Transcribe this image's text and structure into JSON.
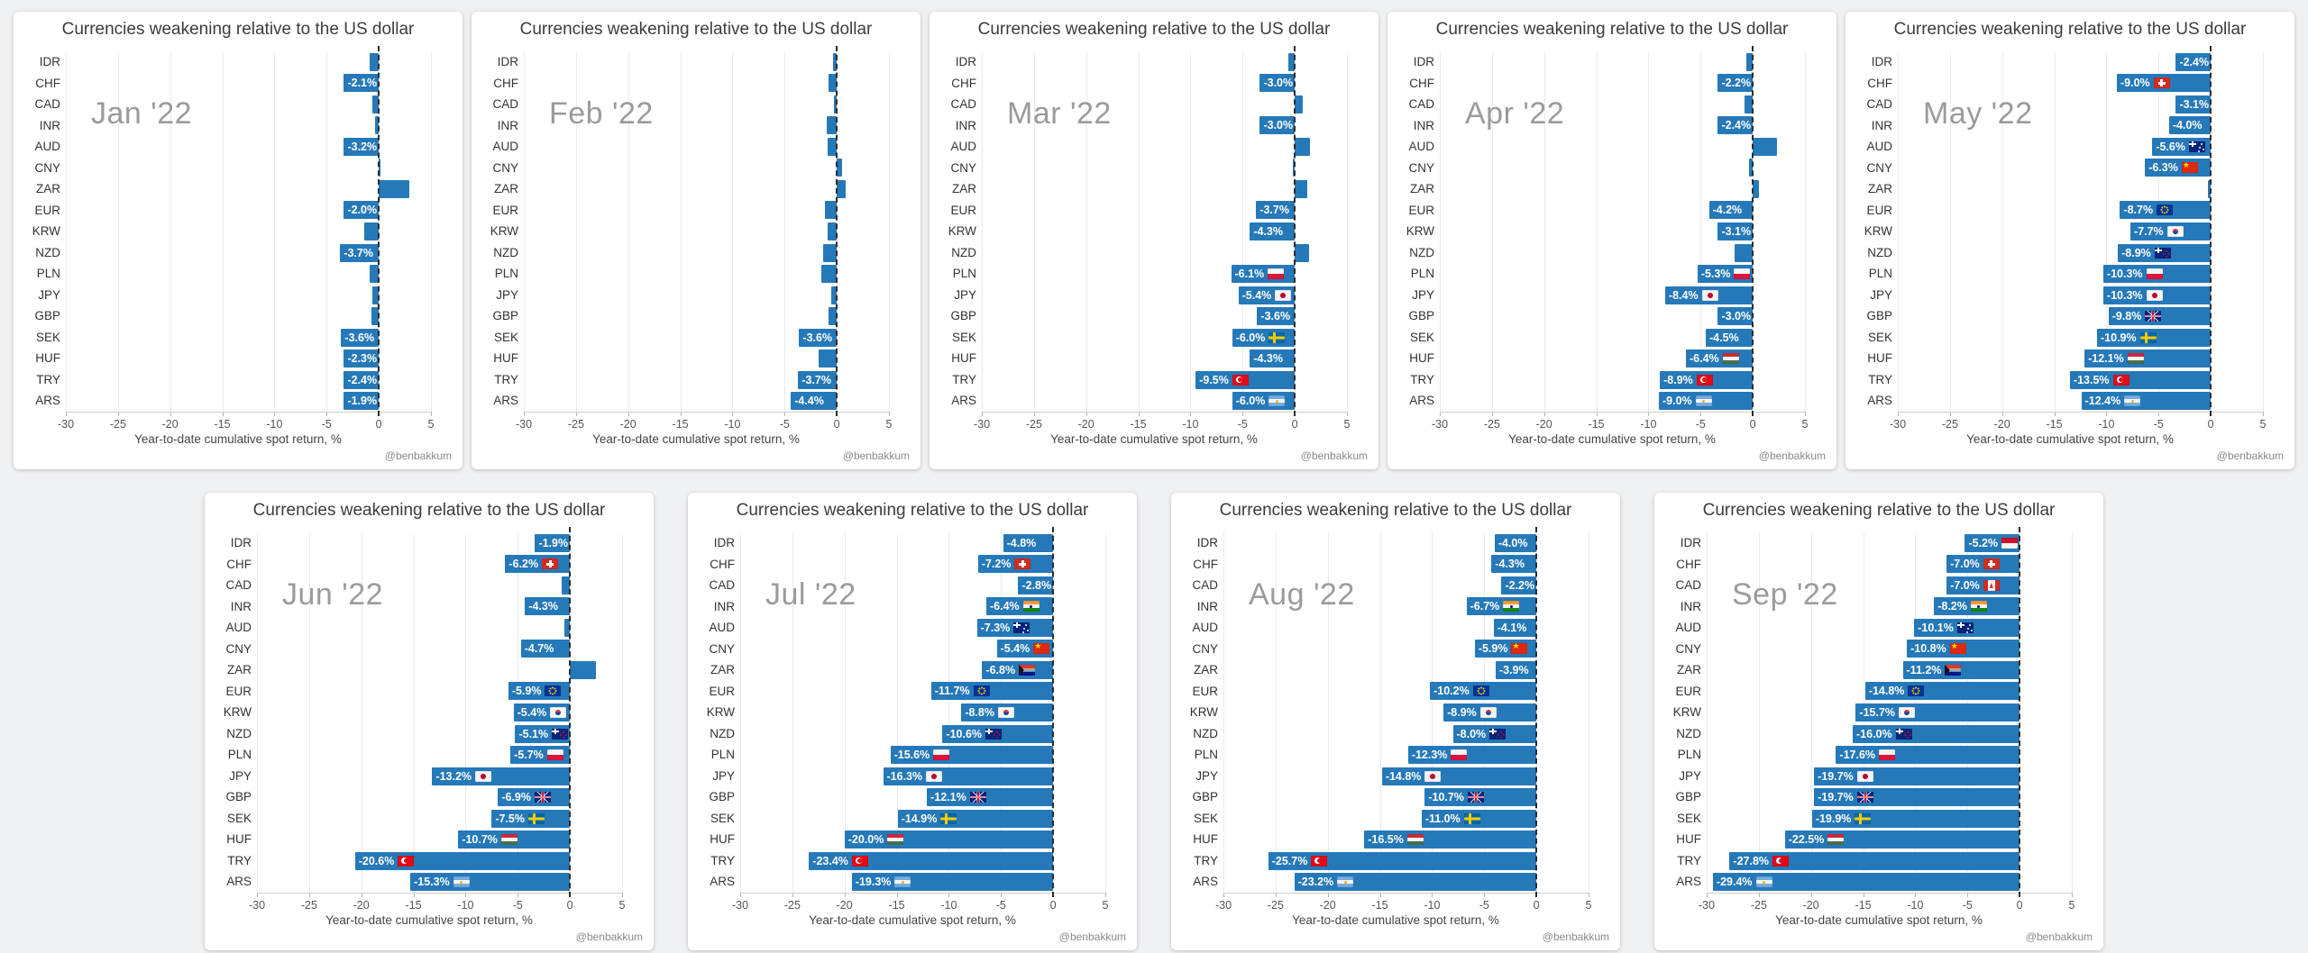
{
  "page": {
    "background": "#f0f1f2"
  },
  "colors": {
    "bar": "#2579b9",
    "bar_label_text": "#ffffff",
    "month_label": "#9b9b9b",
    "grid": "#ebebeb",
    "zero_line": "#2b2b2b"
  },
  "chart_common": {
    "title": "Currencies weakening relative to the US dollar",
    "xlabel": "Year-to-date cumulative spot return, %",
    "attribution": "@benbakkum",
    "xlim": [
      -30,
      5
    ],
    "ticks": [
      -30,
      -25,
      -20,
      -15,
      -10,
      -5,
      0,
      5
    ],
    "grid": true,
    "legend": "none"
  },
  "display_rules": {
    "show_value_label_at_or_below": -1.85,
    "show_flag_at_or_below": -5.0,
    "value_label_format": "{value:.1f}%"
  },
  "categories": [
    "IDR",
    "CHF",
    "CAD",
    "INR",
    "AUD",
    "CNY",
    "ZAR",
    "EUR",
    "KRW",
    "NZD",
    "PLN",
    "JPY",
    "GBP",
    "SEK",
    "HUF",
    "TRY",
    "ARS"
  ],
  "flags": {
    "IDR": "indonesia",
    "CHF": "switzerland",
    "CAD": "canada",
    "INR": "india",
    "AUD": "australia",
    "CNY": "china",
    "ZAR": "south-africa",
    "EUR": "european-union",
    "KRW": "south-korea",
    "NZD": "new-zealand",
    "PLN": "poland",
    "JPY": "japan",
    "GBP": "united-kingdom",
    "SEK": "sweden",
    "HUF": "hungary",
    "TRY": "turkey",
    "ARS": "argentina"
  },
  "chart_data": [
    {
      "type": "bar",
      "month": "Jan '22",
      "values": [
        -0.9,
        -2.1,
        -0.6,
        -0.4,
        -3.2,
        0.2,
        2.9,
        -2.0,
        -1.4,
        -3.7,
        -0.9,
        -0.6,
        -0.7,
        -3.6,
        -2.3,
        -2.4,
        -1.9
      ]
    },
    {
      "type": "bar",
      "month": "Feb '22",
      "values": [
        -0.4,
        -0.8,
        -0.3,
        -1.0,
        -0.9,
        0.5,
        0.9,
        -1.1,
        -0.9,
        -1.3,
        -1.5,
        -0.5,
        -0.8,
        -3.6,
        -1.7,
        -3.7,
        -4.4
      ]
    },
    {
      "type": "bar",
      "month": "Mar '22",
      "values": [
        -0.6,
        -3.0,
        0.8,
        -3.0,
        1.5,
        -0.2,
        1.2,
        -3.7,
        -4.3,
        1.4,
        -6.1,
        -5.4,
        -3.6,
        -6.0,
        -4.3,
        -9.5,
        -6.0
      ]
    },
    {
      "type": "bar",
      "month": "Apr '22",
      "values": [
        -0.6,
        -2.2,
        -0.8,
        -2.4,
        2.3,
        -0.4,
        0.6,
        -4.2,
        -3.1,
        -1.7,
        -5.3,
        -8.4,
        -3.0,
        -4.5,
        -6.4,
        -8.9,
        -9.0
      ]
    },
    {
      "type": "bar",
      "month": "May '22",
      "values": [
        -2.4,
        -9.0,
        -3.1,
        -4.0,
        -5.6,
        -6.3,
        -0.3,
        -8.7,
        -7.7,
        -8.9,
        -10.3,
        -10.3,
        -9.8,
        -10.9,
        -12.1,
        -13.5,
        -12.4
      ]
    },
    {
      "type": "bar",
      "month": "Jun '22",
      "values": [
        -1.9,
        -6.2,
        -0.8,
        -4.3,
        -0.5,
        -4.7,
        2.5,
        -5.9,
        -5.4,
        -5.1,
        -5.7,
        -13.2,
        -6.9,
        -7.5,
        -10.7,
        -20.6,
        -15.3
      ]
    },
    {
      "type": "bar",
      "month": "Jul '22",
      "values": [
        -4.8,
        -7.2,
        -2.8,
        -6.4,
        -7.3,
        -5.4,
        -6.8,
        -11.7,
        -8.8,
        -10.6,
        -15.6,
        -16.3,
        -12.1,
        -14.9,
        -20.0,
        -23.4,
        -19.3
      ]
    },
    {
      "type": "bar",
      "month": "Aug '22",
      "values": [
        -4.0,
        -4.3,
        -2.2,
        -6.7,
        -4.1,
        -5.9,
        -3.9,
        -10.2,
        -8.9,
        -8.0,
        -12.3,
        -14.8,
        -10.7,
        -11.0,
        -16.5,
        -25.7,
        -23.2
      ]
    },
    {
      "type": "bar",
      "month": "Sep '22",
      "values": [
        -5.2,
        -7.0,
        -7.0,
        -8.2,
        -10.1,
        -10.8,
        -11.2,
        -14.8,
        -15.7,
        -16.0,
        -17.6,
        -19.7,
        -19.7,
        -19.9,
        -22.5,
        -27.8,
        -29.4
      ]
    }
  ]
}
